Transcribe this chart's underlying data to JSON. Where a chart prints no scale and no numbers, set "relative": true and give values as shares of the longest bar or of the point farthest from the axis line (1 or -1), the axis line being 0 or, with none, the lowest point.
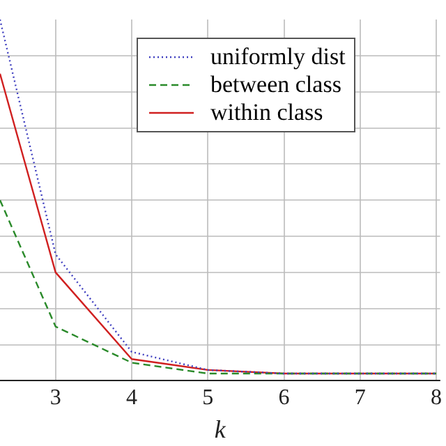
{
  "chart_data": {
    "type": "line",
    "relative": true,
    "xlabel": "k",
    "x": [
      2.27,
      3,
      4,
      5,
      6,
      7,
      8
    ],
    "xlim": [
      2.27,
      8.05
    ],
    "xticks": [
      3,
      4,
      5,
      6,
      7,
      8
    ],
    "grid": true,
    "legend": "top right",
    "tick_labels": "x",
    "marker": "none",
    "series": [
      {
        "name": "uniformly dist",
        "color": "#4040c0",
        "line_style": "dotted",
        "values": [
          1,
          0.35,
          0.08,
          0.03,
          0.02,
          0.02,
          0.02
        ]
      },
      {
        "name": "between class",
        "color": "#2a8a2a",
        "line_style": "dashed",
        "values": [
          0.5,
          0.15,
          0.05,
          0.02,
          0.02,
          0.02,
          0.02
        ]
      },
      {
        "name": "within class",
        "color": "#d02020",
        "line_style": "solid",
        "values": [
          0.85,
          0.3,
          0.06,
          0.03,
          0.02,
          0.02,
          0.02
        ]
      }
    ]
  }
}
